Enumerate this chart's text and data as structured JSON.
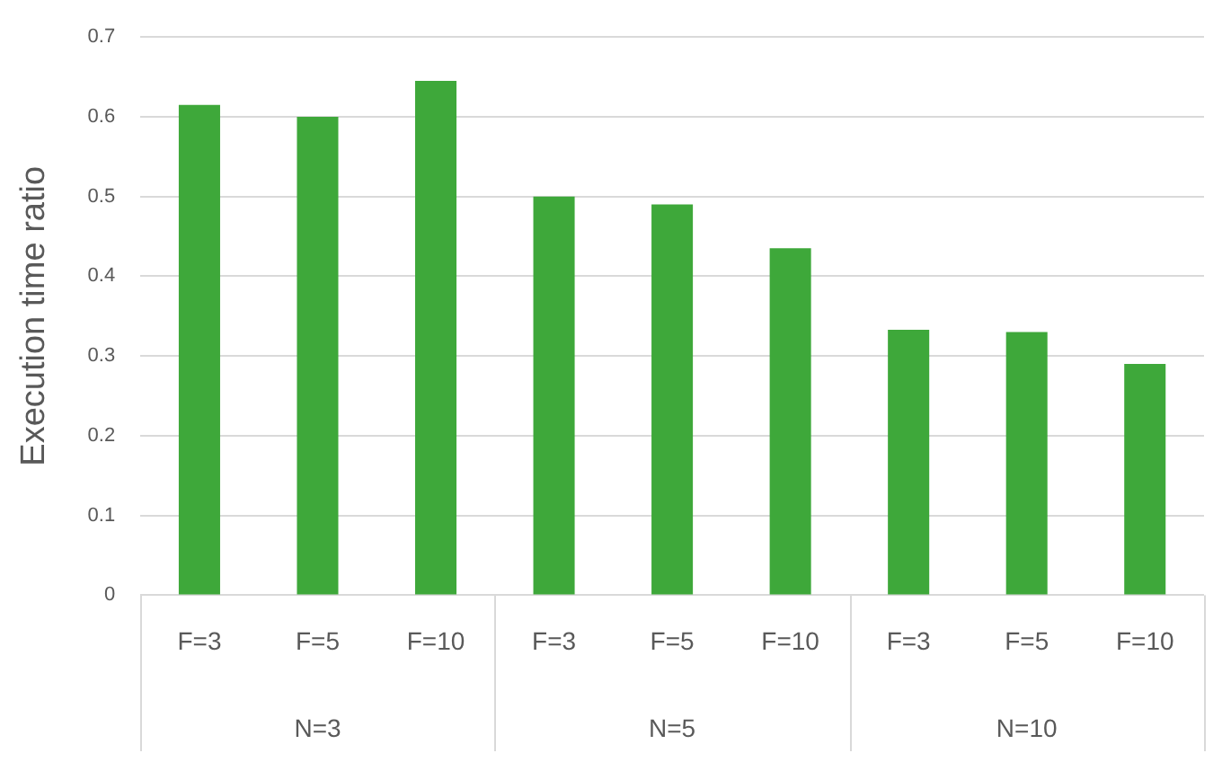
{
  "chart_data": {
    "type": "bar",
    "ylabel": "Execution time ratio",
    "categories": [
      "F=3",
      "F=5",
      "F=10",
      "F=3",
      "F=5",
      "F=10",
      "F=3",
      "F=5",
      "F=10"
    ],
    "values": [
      0.615,
      0.6,
      0.645,
      0.5,
      0.49,
      0.435,
      0.333,
      0.33,
      0.29
    ],
    "color": "#3ea83a",
    "ylim": [
      0,
      0.7
    ],
    "yticks": [
      0,
      0.1,
      0.2,
      0.3,
      0.4,
      0.5,
      0.6,
      0.7
    ],
    "grid": "y",
    "annotations": [
      "N=3",
      "N=5",
      "N=10"
    ]
  }
}
